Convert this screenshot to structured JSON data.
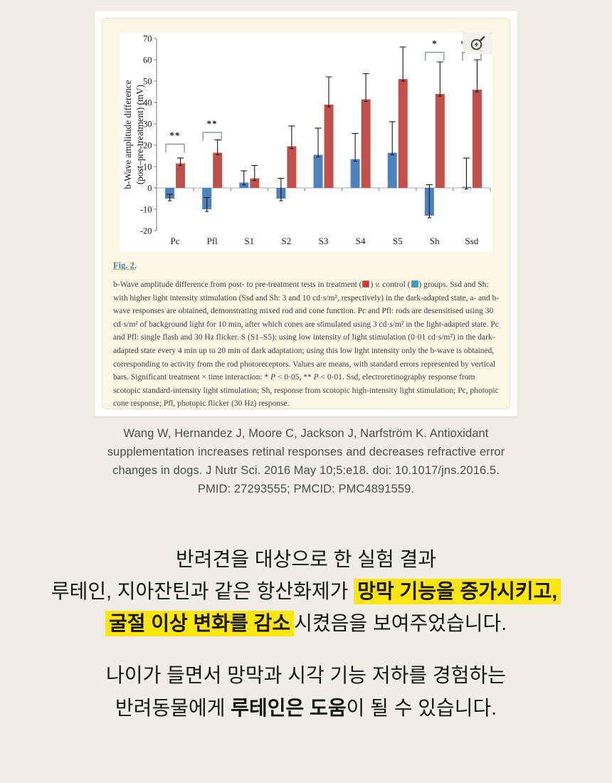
{
  "page": {
    "background": "#efede8"
  },
  "figure": {
    "panel_background": "#fbf7e5",
    "link_label": "Fig. 2.",
    "caption_segments": [
      {
        "t": "b-Wave amplitude difference from post- to pre-treatment tests in treatment ("
      },
      {
        "square": "#d8372a"
      },
      {
        "t": ") "
      },
      {
        "t": "v.",
        "italic": true
      },
      {
        "t": " control ("
      },
      {
        "square": "#2ea0d2"
      },
      {
        "t": ") groups. Ssd and Sh: with higher light intensity stimulation (Ssd and Sh: 3 and 10 cd·s/m², respectively) in the dark-adapted state, a- and b-wave responses are obtained, demonstrating mixed rod and cone function. Pc and Pfl: rods are desensitised using 30 cd·s/m² of background light for 10 min, after which cones are stimulated using 3 cd·s/m² in the light-adapted state. Pc and Pfl: single flash and 30 Hz flicker. S (S1–S5): using low intensity of light stimulation (0·01 cd·s/m²) in the dark-adapted state every 4 min up to 20 min of dark adaptation; using this low light intensity only the b-wave is obtained, corresponding to activity from the rod photoreceptors. Values are means, with standard errors represented by vertical bars. Significant treatment × time interaction: * "
      },
      {
        "t": "P",
        "italic": true
      },
      {
        "t": " < 0·05, ** "
      },
      {
        "t": "P",
        "italic": true
      },
      {
        "t": " < 0·01. Ssd, electroretinography response from scotopic standard-intensity light stimulation; Sh, response from scotopic high-intensity light stimulation; Pc, photopic cone response; Pfl, photopic flicker (30 Hz) response."
      }
    ]
  },
  "chart_data": {
    "type": "bar",
    "title": "",
    "categories": [
      "Pc",
      "Pfl",
      "S1",
      "S2",
      "S3",
      "S4",
      "S5",
      "Sh",
      "Ssd"
    ],
    "series": [
      {
        "name": "control",
        "color": "#4f81bd",
        "values": [
          -5,
          -10,
          2.5,
          -5,
          15.5,
          13.5,
          16.5,
          -13,
          0.5
        ],
        "errors": [
          2,
          5.5,
          5.5,
          9.5,
          12.5,
          12,
          14.5,
          14.5,
          13.5
        ]
      },
      {
        "name": "treatment",
        "color": "#c0504d",
        "values": [
          11.5,
          16.5,
          4.5,
          19.5,
          39,
          41.5,
          51,
          44,
          46
        ],
        "errors": [
          2.5,
          6,
          6,
          9.5,
          13,
          12,
          15,
          15,
          14
        ]
      }
    ],
    "ylabel_lines": [
      "b-Wave amplitude difference",
      "(post–pre-treatment) (mV)"
    ],
    "xlabel": "",
    "ylim": [
      -20,
      70
    ],
    "ytick_step": 10,
    "grid": false,
    "legend": "none",
    "significance": [
      {
        "category_index": 0,
        "label": "**",
        "bracket_top": 20.5,
        "label_v": 24.5,
        "dx": 0
      },
      {
        "category_index": 1,
        "label": "**",
        "bracket_top": 26,
        "label_v": 30,
        "dx": 0
      },
      {
        "category_index": 7,
        "label": "*",
        "bracket_top": 63.5,
        "label_v": 67.5,
        "dx": 0
      },
      {
        "category_index": 8,
        "label": "*",
        "bracket_top": 63.5,
        "label_v": 67.5,
        "dx": -12
      }
    ]
  },
  "citation": {
    "lines": [
      "Wang W, Hernandez J, Moore C, Jackson J, Narfström K. Antioxidant",
      "supplementation increases retinal responses and decreases refractive error",
      "changes in dogs. J Nutr Sci. 2016 May 10;5:e18. doi: 10.1017/jns.2016.5.",
      "PMID: 27293555; PMCID: PMC4891559."
    ]
  },
  "korean": {
    "highlight_color": "#ffe60a",
    "block1": [
      [
        {
          "t": "반려견을 대상으로 한 실험 결과"
        }
      ],
      [
        {
          "t": "루테인, 지아잔틴과 같은 항산화제가 "
        },
        {
          "t": "망막 기능을 증가시키고,",
          "hl": true
        }
      ],
      [
        {
          "t": "굴절 이상 변화를 감소",
          "hl": true
        },
        {
          "t": "시켰음을 보여주었습니다."
        }
      ]
    ],
    "block2": [
      [
        {
          "t": "나이가 들면서 망막과 시각 기능 저하를 경험하는"
        }
      ],
      [
        {
          "t": "반려동물에게 "
        },
        {
          "t": "루테인은 도움",
          "bold": true
        },
        {
          "t": "이 될 수 있습니다."
        }
      ]
    ]
  }
}
